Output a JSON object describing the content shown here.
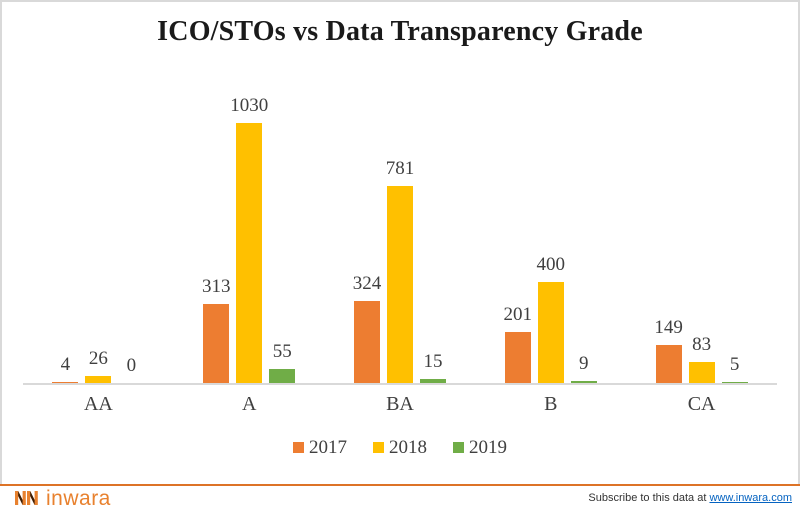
{
  "chart_data": {
    "type": "bar",
    "title": "ICO/STOs vs Data Transparency Grade",
    "categories": [
      "AA",
      "A",
      "BA",
      "B",
      "CA"
    ],
    "series": [
      {
        "name": "2017",
        "color": "#ED7D31",
        "values": [
          4,
          313,
          324,
          201,
          149
        ]
      },
      {
        "name": "2018",
        "color": "#FFC000",
        "values": [
          26,
          1030,
          781,
          400,
          83
        ]
      },
      {
        "name": "2019",
        "color": "#70AD47",
        "values": [
          0,
          55,
          15,
          9,
          5
        ]
      }
    ],
    "ylim": [
      0,
      1030
    ],
    "grid": false,
    "data_labels": true,
    "legend_position": "bottom",
    "axis_color": "#D9D9D9"
  },
  "footer": {
    "logo_text": "inwara",
    "logo_icon": "inwara-nn-mark",
    "subscribe_prefix": "Subscribe to this data at",
    "subscribe_link": "www.inwara.com"
  },
  "colors": {
    "footer_rule_orange": "#DD7327",
    "logo_orange": "#E8812E",
    "logo_dark": "#3A1D07",
    "link_blue": "#0563C1",
    "label_text": "#404040"
  }
}
